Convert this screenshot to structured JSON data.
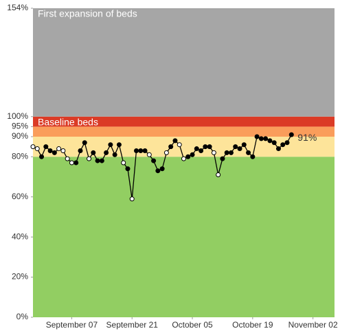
{
  "chart_data": {
    "type": "line",
    "bands": [
      {
        "from": 0,
        "to": 80,
        "color": "#92ce62"
      },
      {
        "from": 80,
        "to": 90,
        "color": "#fde49a"
      },
      {
        "from": 90,
        "to": 95,
        "color": "#fa9d5b"
      },
      {
        "from": 95,
        "to": 100,
        "color": "#db3b26",
        "label": "Baseline beds"
      },
      {
        "from": 100,
        "to": 154,
        "color": "#a6a6a6",
        "label": "First expansion of beds"
      }
    ],
    "x": [
      "08-29",
      "08-30",
      "08-31",
      "09-01",
      "09-02",
      "09-03",
      "09-04",
      "09-05",
      "09-06",
      "09-07",
      "09-08",
      "09-09",
      "09-10",
      "09-11",
      "09-12",
      "09-13",
      "09-14",
      "09-15",
      "09-16",
      "09-17",
      "09-18",
      "09-19",
      "09-20",
      "09-21",
      "09-22",
      "09-23",
      "09-24",
      "09-25",
      "09-26",
      "09-27",
      "09-28",
      "09-29",
      "09-30",
      "10-01",
      "10-02",
      "10-03",
      "10-04",
      "10-05",
      "10-06",
      "10-07",
      "10-08",
      "10-09",
      "10-10",
      "10-11",
      "10-12",
      "10-13",
      "10-14",
      "10-15",
      "10-16",
      "10-17",
      "10-18",
      "10-19",
      "10-20",
      "10-21",
      "10-22",
      "10-23",
      "10-24",
      "10-25",
      "10-26",
      "10-27",
      "10-28"
    ],
    "series": [
      {
        "color": "#000000",
        "values": [
          85,
          84,
          80,
          85,
          83,
          82,
          84,
          83,
          79,
          77,
          77,
          83,
          87,
          79,
          82,
          78,
          78,
          82,
          86,
          81,
          86,
          77,
          74,
          59,
          83,
          83,
          83,
          81,
          78,
          73,
          74,
          82,
          85,
          88,
          86,
          79,
          80,
          81,
          84,
          83,
          85,
          85,
          82,
          71,
          79,
          82,
          82,
          85,
          84,
          86,
          82,
          80,
          90,
          89,
          89,
          88,
          87,
          84,
          86,
          87,
          91
        ]
      }
    ],
    "open_points": [
      0,
      1,
      6,
      7,
      8,
      9,
      13,
      21,
      23,
      27,
      31,
      34,
      35,
      42,
      43
    ],
    "end_label": "91%",
    "xlim": [
      "08-29",
      "11-07"
    ],
    "xticks": [
      {
        "value": "09-07",
        "label": "September 07"
      },
      {
        "value": "09-21",
        "label": "September 21"
      },
      {
        "value": "10-05",
        "label": "October 05"
      },
      {
        "value": "10-19",
        "label": "October 19"
      },
      {
        "value": "11-02",
        "label": "November 02"
      }
    ],
    "ylim": [
      0,
      154
    ],
    "yticks": [
      {
        "value": 0,
        "label": "0%"
      },
      {
        "value": 20,
        "label": "20%"
      },
      {
        "value": 40,
        "label": "40%"
      },
      {
        "value": 60,
        "label": "60%"
      },
      {
        "value": 80,
        "label": "80%"
      },
      {
        "value": 90,
        "label": "90%"
      },
      {
        "value": 95,
        "label": "95%"
      },
      {
        "value": 100,
        "label": "100%"
      },
      {
        "value": 154,
        "label": "154%"
      }
    ]
  }
}
